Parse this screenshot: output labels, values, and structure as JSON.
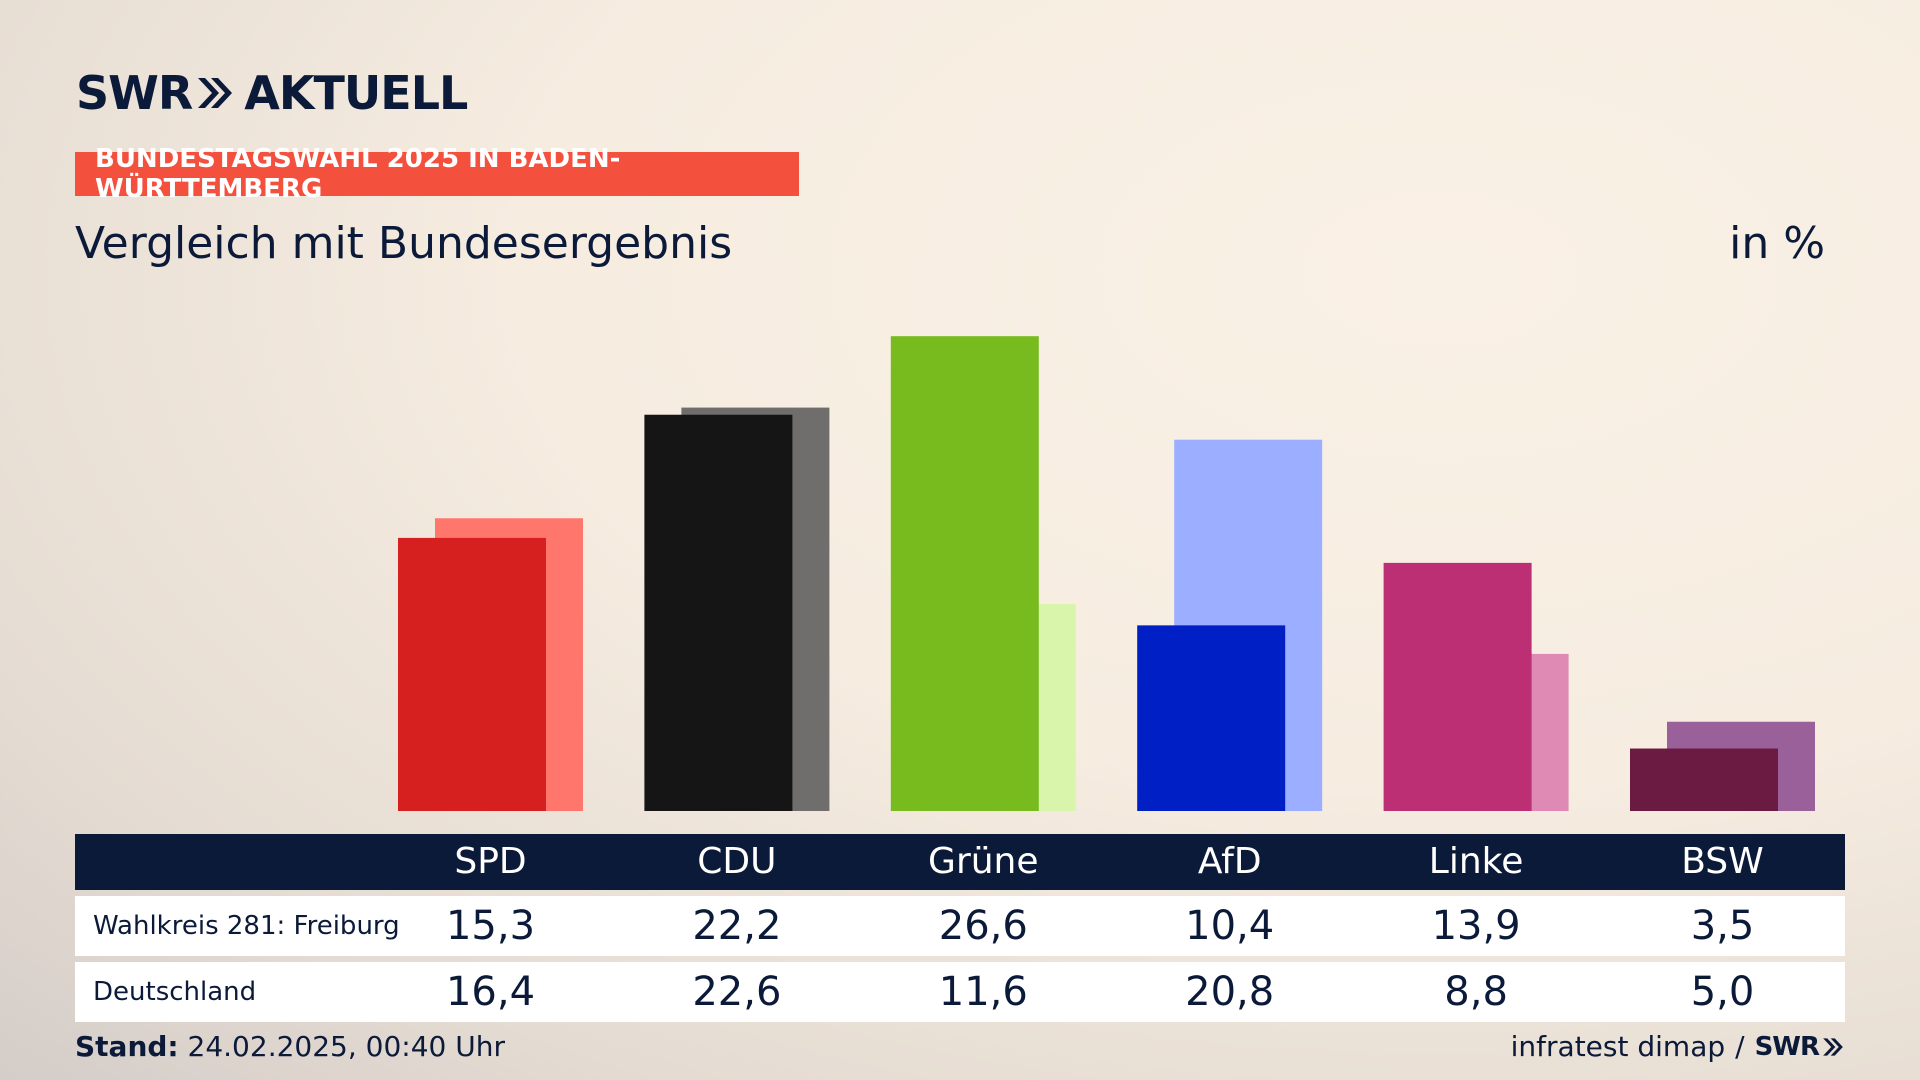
{
  "header": {
    "brand_left": "SWR",
    "brand_right": "AKTUELL",
    "banner": "BUNDESTAGSWAHL 2025 IN BADEN-WÜRTTEMBERG",
    "subtitle": "Vergleich mit Bundesergebnis",
    "unit": "in %"
  },
  "footer": {
    "stand_label": "Stand:",
    "stand_value": "24.02.2025, 00:40 Uhr",
    "source": "infratest dimap",
    "separator": "/",
    "source_brand": "SWR"
  },
  "table": {
    "row_labels": [
      "Wahlkreis 281: Freiburg",
      "Deutschland"
    ]
  },
  "chart_data": {
    "type": "bar",
    "categories": [
      "SPD",
      "CDU",
      "Grüne",
      "AfD",
      "Linke",
      "BSW"
    ],
    "series": [
      {
        "name": "Wahlkreis 281: Freiburg",
        "values": [
          15.3,
          22.2,
          26.6,
          10.4,
          13.9,
          3.5
        ]
      },
      {
        "name": "Deutschland",
        "values": [
          16.4,
          22.6,
          11.6,
          20.8,
          8.8,
          5.0
        ]
      }
    ],
    "value_labels": {
      "Wahlkreis 281: Freiburg": [
        "15,3",
        "22,2",
        "26,6",
        "10,4",
        "13,9",
        "3,5"
      ],
      "Deutschland": [
        "16,4",
        "22,6",
        "11,6",
        "20,8",
        "8,8",
        "5,0"
      ]
    },
    "colors": {
      "primary": [
        "#d61f1f",
        "#151515",
        "#78bb1e",
        "#0020c6",
        "#bc2f74",
        "#6b1a42"
      ],
      "secondary": [
        "#ff766c",
        "#706e6d",
        "#d9f5ab",
        "#9caeff",
        "#de8ab5",
        "#9a609a"
      ]
    },
    "ylim": [
      0,
      30
    ],
    "title": "Vergleich mit Bundesergebnis",
    "ylabel": "in %",
    "legend": "table-below"
  }
}
